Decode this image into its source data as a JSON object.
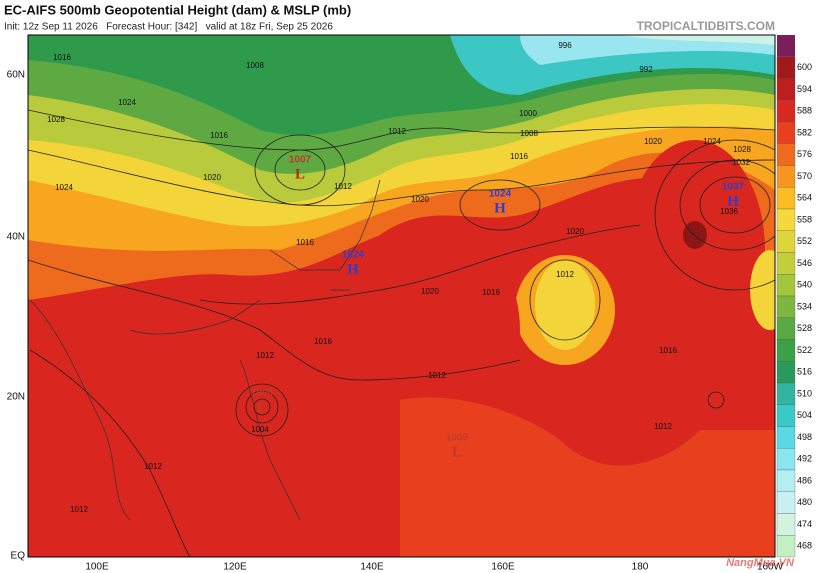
{
  "header": {
    "title": "EC-AIFS 500mb Geopotential Height (dam) & MSLP (mb)",
    "subtitle": "Init: 12z Sep 11 2026   Forecast Hour: [342]   valid at 18z Fri, Sep 25 2026",
    "source": "TROPICALTIDBITS.COM"
  },
  "lat_labels": [
    "60N",
    "40N",
    "20N",
    "EQ"
  ],
  "lon_labels": [
    "100E",
    "120E",
    "140E",
    "160E",
    "180",
    "160W"
  ],
  "colorbar_labels": [
    600,
    594,
    588,
    582,
    576,
    570,
    564,
    558,
    552,
    546,
    540,
    534,
    528,
    522,
    516,
    510,
    504,
    498,
    492,
    486,
    480,
    474,
    468
  ],
  "pressure_centers": [
    {
      "value": "1007",
      "symbol": "L"
    },
    {
      "value": "1024",
      "symbol": "H"
    },
    {
      "value": "1024",
      "symbol": "H"
    },
    {
      "value": "1037",
      "symbol": "H"
    },
    {
      "value": "1009",
      "symbol": "L"
    },
    {
      "value": "1008",
      "symbol": "L"
    }
  ],
  "isobar_labels": [
    "1016",
    "1008",
    "1024",
    "1028",
    "1016",
    "1012",
    "1020",
    "1024",
    "1012",
    "1020",
    "1016",
    "996",
    "992",
    "1000",
    "1008",
    "1016",
    "1020",
    "1024",
    "1028",
    "1032",
    "1036",
    "1020",
    "1012",
    "1016",
    "1020",
    "1016",
    "1012",
    "1012",
    "1016",
    "1012",
    "1004",
    "1012",
    "1012"
  ],
  "watermark": "NangMua.VN"
}
